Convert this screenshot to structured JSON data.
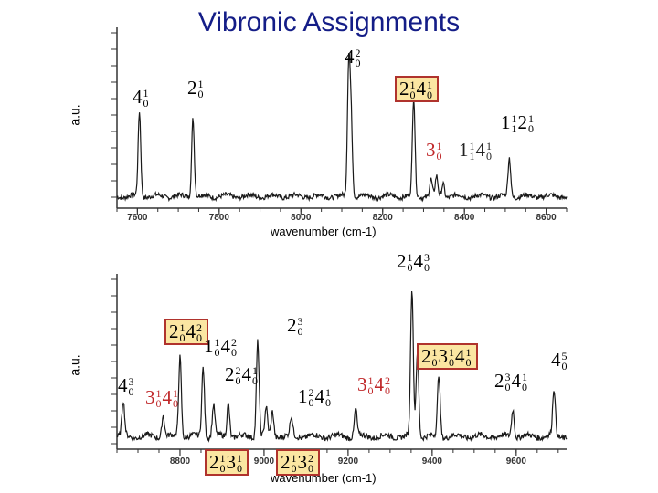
{
  "title": "Vibronic Assignments",
  "colors": {
    "title": "#141d87",
    "trace": "#1a1a1a",
    "box_fill": "#fbe6a2",
    "box_border": "#b0332d",
    "red_label": "#c0282a"
  },
  "chart_data": [
    {
      "type": "line",
      "ylabel": "a.u.",
      "xlabel": "wavenumber (cm-1)",
      "xlim": [
        7550,
        8650
      ],
      "x_ticks": [
        7600,
        7800,
        8000,
        8200,
        8400,
        8600
      ],
      "peaks": [
        {
          "x": 7605,
          "h": 0.62
        },
        {
          "x": 7736,
          "h": 0.58
        },
        {
          "x": 8117,
          "h": 0.95
        },
        {
          "x": 8123,
          "h": 0.55
        },
        {
          "x": 8276,
          "h": 0.72
        },
        {
          "x": 8318,
          "h": 0.12
        },
        {
          "x": 8332,
          "h": 0.14
        },
        {
          "x": 8348,
          "h": 0.1
        },
        {
          "x": 8510,
          "h": 0.28
        }
      ],
      "annotations": [
        {
          "id": "p1-4-0-1",
          "terms": [
            {
              "v": "4",
              "u": "1",
              "l": "0"
            }
          ],
          "style": "plain"
        },
        {
          "id": "p1-2-0-1",
          "terms": [
            {
              "v": "2",
              "u": "1",
              "l": "0"
            }
          ],
          "style": "plain"
        },
        {
          "id": "p1-4-0-2",
          "terms": [
            {
              "v": "4",
              "u": "2",
              "l": "0"
            }
          ],
          "style": "plain"
        },
        {
          "id": "p1-2-0-1-4-0-1",
          "terms": [
            {
              "v": "2",
              "u": "1",
              "l": "0"
            },
            {
              "v": "4",
              "u": "1",
              "l": "0"
            }
          ],
          "style": "boxed"
        },
        {
          "id": "p1-3-0-1",
          "terms": [
            {
              "v": "3",
              "u": "1",
              "l": "0"
            }
          ],
          "style": "red"
        },
        {
          "id": "p1-1-1-4-0-1",
          "terms": [
            {
              "v": "1",
              "u": "1",
              "l": "1"
            },
            {
              "v": "4",
              "u": "1",
              "l": "0"
            }
          ],
          "style": "dark"
        },
        {
          "id": "p1-1-1-2-0-1",
          "terms": [
            {
              "v": "1",
              "u": "1",
              "l": "1"
            },
            {
              "v": "2",
              "u": "1",
              "l": "0"
            }
          ],
          "style": "plain"
        }
      ]
    },
    {
      "type": "line",
      "ylabel": "a.u.",
      "xlabel": "wavenumber (cm-1)",
      "xlim": [
        8650,
        9720
      ],
      "x_ticks": [
        8800,
        9000,
        9200,
        9400,
        9600
      ],
      "peaks": [
        {
          "x": 8665,
          "h": 0.22
        },
        {
          "x": 8760,
          "h": 0.14
        },
        {
          "x": 8800,
          "h": 0.52
        },
        {
          "x": 8855,
          "h": 0.45
        },
        {
          "x": 8880,
          "h": 0.2
        },
        {
          "x": 8915,
          "h": 0.22
        },
        {
          "x": 8985,
          "h": 0.62
        },
        {
          "x": 9005,
          "h": 0.18
        },
        {
          "x": 9020,
          "h": 0.16
        },
        {
          "x": 9065,
          "h": 0.12
        },
        {
          "x": 9218,
          "h": 0.18
        },
        {
          "x": 9352,
          "h": 0.95
        },
        {
          "x": 9365,
          "h": 0.55
        },
        {
          "x": 9416,
          "h": 0.4
        },
        {
          "x": 9592,
          "h": 0.18
        },
        {
          "x": 9690,
          "h": 0.3
        }
      ],
      "annotations": [
        {
          "id": "p2-4-0-3",
          "terms": [
            {
              "v": "4",
              "u": "3",
              "l": "0"
            }
          ],
          "style": "plain"
        },
        {
          "id": "p2-3-0-1-4-0-1",
          "terms": [
            {
              "v": "3",
              "u": "1",
              "l": "0"
            },
            {
              "v": "4",
              "u": "1",
              "l": "0"
            }
          ],
          "style": "red"
        },
        {
          "id": "p2-2-0-1-4-0-2",
          "terms": [
            {
              "v": "2",
              "u": "1",
              "l": "0"
            },
            {
              "v": "4",
              "u": "2",
              "l": "0"
            }
          ],
          "style": "boxed"
        },
        {
          "id": "p2-1-0-1-4-0-2",
          "terms": [
            {
              "v": "1",
              "u": "1",
              "l": "0"
            },
            {
              "v": "4",
              "u": "2",
              "l": "0"
            }
          ],
          "style": "plain"
        },
        {
          "id": "p2-2-0-2-4-0-1",
          "terms": [
            {
              "v": "2",
              "u": "2",
              "l": "0"
            },
            {
              "v": "4",
              "u": "1",
              "l": "0"
            }
          ],
          "style": "plain"
        },
        {
          "id": "p2-2-0-3",
          "terms": [
            {
              "v": "2",
              "u": "3",
              "l": "0"
            }
          ],
          "style": "plain"
        },
        {
          "id": "p2-1-0-2-4-0-1",
          "terms": [
            {
              "v": "1",
              "u": "2",
              "l": "0"
            },
            {
              "v": "4",
              "u": "1",
              "l": "0"
            }
          ],
          "style": "plain"
        },
        {
          "id": "p2-3-0-1-4-0-2",
          "terms": [
            {
              "v": "3",
              "u": "1",
              "l": "0"
            },
            {
              "v": "4",
              "u": "2",
              "l": "0"
            }
          ],
          "style": "red"
        },
        {
          "id": "p2-2-0-1-4-0-3",
          "terms": [
            {
              "v": "2",
              "u": "1",
              "l": "0"
            },
            {
              "v": "4",
              "u": "3",
              "l": "0"
            }
          ],
          "style": "plain"
        },
        {
          "id": "p2-2-0-1-3-0-1-4-0-1",
          "terms": [
            {
              "v": "2",
              "u": "1",
              "l": "0"
            },
            {
              "v": "3",
              "u": "1",
              "l": "0"
            },
            {
              "v": "4",
              "u": "1",
              "l": "0"
            }
          ],
          "style": "boxed"
        },
        {
          "id": "p2-2-0-3-4-0-1",
          "terms": [
            {
              "v": "2",
              "u": "3",
              "l": "0"
            },
            {
              "v": "4",
              "u": "1",
              "l": "0"
            }
          ],
          "style": "plain"
        },
        {
          "id": "p2-4-0-5",
          "terms": [
            {
              "v": "4",
              "u": "5",
              "l": "0"
            }
          ],
          "style": "plain"
        },
        {
          "id": "p2-2-0-1-3-0-1",
          "terms": [
            {
              "v": "2",
              "u": "1",
              "l": "0"
            },
            {
              "v": "3",
              "u": "1",
              "l": "0"
            }
          ],
          "style": "boxed"
        },
        {
          "id": "p2-2-0-1-3-0-2",
          "terms": [
            {
              "v": "2",
              "u": "1",
              "l": "0"
            },
            {
              "v": "3",
              "u": "2",
              "l": "0"
            }
          ],
          "style": "boxed"
        }
      ]
    }
  ]
}
